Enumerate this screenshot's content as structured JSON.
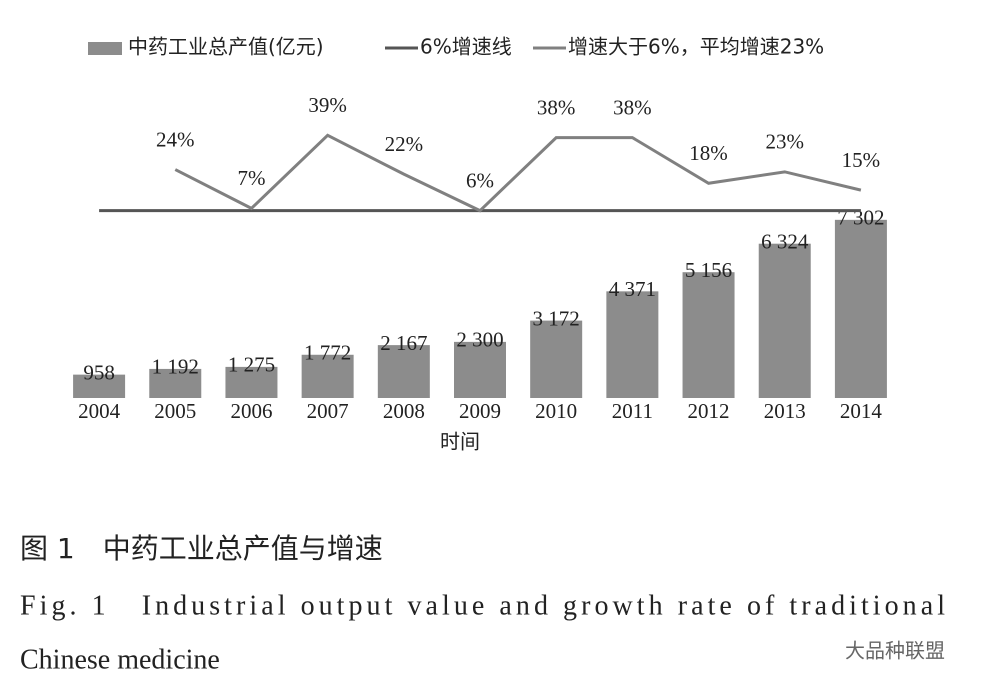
{
  "chart_data": {
    "type": "bar_line",
    "categories": [
      "2004",
      "2005",
      "2006",
      "2007",
      "2008",
      "2009",
      "2010",
      "2011",
      "2012",
      "2013",
      "2014"
    ],
    "x_label": "时间",
    "series": [
      {
        "name": "中药工业总产值(亿元)",
        "color": "#8c8c8c",
        "type": "bar",
        "values": [
          958,
          1192,
          1275,
          1772,
          2167,
          2300,
          3172,
          4371,
          5156,
          6324,
          7302
        ],
        "value_labels": [
          "958",
          "1 192",
          "1 275",
          "1 772",
          "2 167",
          "2 300",
          "3 172",
          "4 371",
          "5 156",
          "6 324",
          "7 302"
        ]
      },
      {
        "name": "6%增速线",
        "color": "#555555",
        "type": "line",
        "axis": "y2",
        "values": [
          6,
          6,
          6,
          6,
          6,
          6,
          6,
          6,
          6,
          6,
          6
        ]
      },
      {
        "name": "增速大于6%，平均增速23%",
        "color": "#808080",
        "type": "line",
        "axis": "y2",
        "values": [
          null,
          24,
          7,
          39,
          22,
          6,
          38,
          38,
          18,
          23,
          15
        ],
        "value_labels": [
          null,
          "24%",
          "7%",
          "39%",
          "22%",
          "6%",
          "38%",
          "38%",
          "18%",
          "23%",
          "15%"
        ]
      }
    ],
    "ylim": [
      0,
      7500
    ],
    "y2lim": [
      -20,
      72
    ]
  },
  "caption": {
    "cn": "图 1　中药工业总产值与增速",
    "en_1": "Fig. 1　Industrial output value and growth rate of traditional",
    "en_2": "Chinese medicine"
  },
  "watermark": "大品种联盟"
}
